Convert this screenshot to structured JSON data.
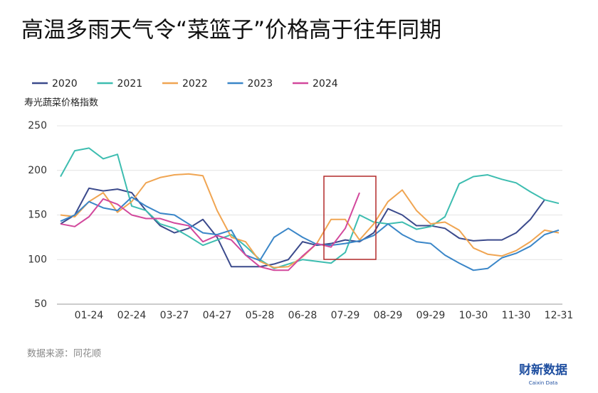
{
  "chart_data": {
    "type": "line",
    "title": "高温多雨天气令“菜篮子”价格高于往年同期",
    "y_axis_label": "寿光蔬菜价格指数",
    "source": "数据来源：同花顺",
    "logo": "财新数据",
    "logo_sub": "Caixin Data",
    "categories": [
      null,
      null,
      "01-24",
      null,
      null,
      "02-24",
      null,
      null,
      "03-27",
      null,
      null,
      "04-27",
      null,
      null,
      "05-28",
      null,
      null,
      "06-28",
      null,
      null,
      "07-29",
      null,
      null,
      "08-29",
      null,
      null,
      "09-29",
      null,
      null,
      "10-30",
      null,
      null,
      "11-30",
      null,
      null,
      "12-31"
    ],
    "ylim": [
      50,
      250
    ],
    "yticks": [
      50,
      100,
      150,
      200,
      250
    ],
    "grid": true,
    "legend": "top-left",
    "series": [
      {
        "name": "2020",
        "color": "#3b4a8c",
        "values": [
          140,
          150,
          180,
          177,
          179,
          175,
          155,
          138,
          130,
          135,
          145,
          125,
          92,
          92,
          92,
          95,
          100,
          120,
          116,
          118,
          122,
          120,
          130,
          157,
          150,
          138,
          138,
          135,
          124,
          121,
          122,
          122,
          130,
          145,
          167,
          null
        ]
      },
      {
        "name": "2021",
        "color": "#3dbdb0",
        "values": [
          193,
          222,
          225,
          213,
          218,
          160,
          155,
          140,
          135,
          126,
          116,
          122,
          128,
          115,
          100,
          90,
          95,
          100,
          98,
          96,
          108,
          150,
          142,
          140,
          142,
          134,
          137,
          148,
          185,
          193,
          195,
          190,
          186,
          176,
          167,
          163
        ]
      },
      {
        "name": "2022",
        "color": "#f0a552",
        "values": [
          150,
          148,
          165,
          175,
          153,
          165,
          186,
          192,
          195,
          196,
          194,
          155,
          125,
          120,
          98,
          91,
          92,
          103,
          118,
          145,
          145,
          122,
          140,
          165,
          178,
          155,
          140,
          142,
          133,
          113,
          106,
          104,
          110,
          120,
          133,
          130
        ]
      },
      {
        "name": "2023",
        "color": "#3a86c8",
        "values": [
          143,
          150,
          165,
          158,
          155,
          170,
          160,
          152,
          150,
          140,
          130,
          128,
          133,
          105,
          99,
          125,
          135,
          125,
          117,
          116,
          118,
          121,
          127,
          140,
          128,
          120,
          118,
          105,
          96,
          88,
          90,
          102,
          107,
          115,
          128,
          133
        ]
      },
      {
        "name": "2024",
        "color": "#d2489c",
        "values": [
          140,
          137,
          148,
          168,
          162,
          150,
          146,
          146,
          141,
          138,
          120,
          127,
          122,
          105,
          92,
          88,
          88,
          104,
          118,
          114,
          135,
          175,
          null,
          null,
          null,
          null,
          null,
          null,
          null,
          null,
          null,
          null,
          null,
          null,
          null,
          null
        ]
      }
    ]
  }
}
